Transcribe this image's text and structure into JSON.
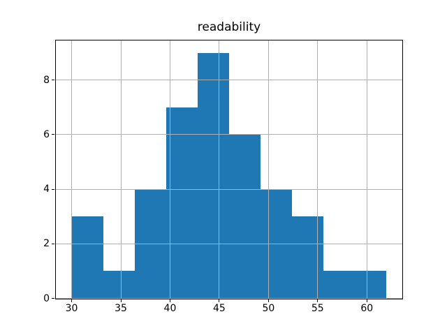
{
  "chart_data": {
    "type": "bar",
    "subtype": "histogram",
    "title": "readability",
    "xlabel": "",
    "ylabel": "",
    "bin_edges": [
      30.0,
      33.2,
      36.4,
      39.6,
      42.8,
      46.0,
      49.2,
      52.4,
      55.6,
      58.8,
      62.0
    ],
    "counts": [
      3,
      1,
      4,
      7,
      9,
      6,
      4,
      3,
      1,
      1
    ],
    "xticks": [
      30,
      35,
      40,
      45,
      50,
      55,
      60
    ],
    "yticks": [
      0,
      2,
      4,
      6,
      8
    ],
    "xlim": [
      28.4,
      63.6
    ],
    "ylim": [
      0,
      9.45
    ],
    "grid": true,
    "grid_over_bars": true,
    "legend": false,
    "colors": {
      "bar": "#1f77b4",
      "grid": "#b0b0b0",
      "spine": "#000000",
      "tick": "#000000",
      "text": "#000000",
      "background": "#ffffff"
    }
  }
}
